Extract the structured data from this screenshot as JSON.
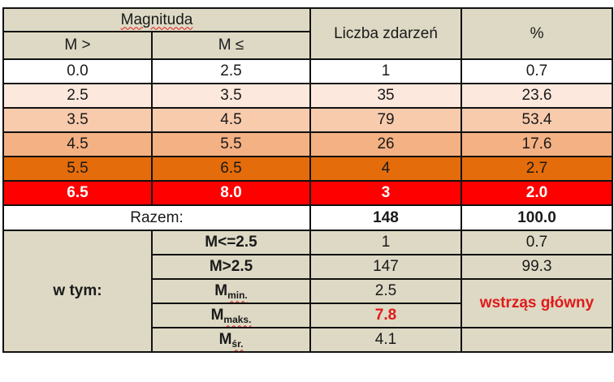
{
  "header": {
    "magnitude_group": "Magnituda",
    "col_m_gt": "M >",
    "col_m_le": "M ≤",
    "col_count": "Liczba zdarzeń",
    "col_percent": "%"
  },
  "rows": [
    {
      "m_gt": "0.0",
      "m_le": "2.5",
      "count": "1",
      "percent": "0.7",
      "color": "#ffffff",
      "text_color": "#1a1a1a",
      "bold": false
    },
    {
      "m_gt": "2.5",
      "m_le": "3.5",
      "count": "35",
      "percent": "23.6",
      "color": "#fce8dc",
      "text_color": "#1a1a1a",
      "bold": false
    },
    {
      "m_gt": "3.5",
      "m_le": "4.5",
      "count": "79",
      "percent": "53.4",
      "color": "#f8cbad",
      "text_color": "#1a1a1a",
      "bold": false
    },
    {
      "m_gt": "4.5",
      "m_le": "5.5",
      "count": "26",
      "percent": "17.6",
      "color": "#f4b183",
      "text_color": "#1a1a1a",
      "bold": false
    },
    {
      "m_gt": "5.5",
      "m_le": "6.5",
      "count": "4",
      "percent": "2.7",
      "color": "#e46c0a",
      "text_color": "#1a1a1a",
      "bold": false
    },
    {
      "m_gt": "6.5",
      "m_le": "8.0",
      "count": "3",
      "percent": "2.0",
      "color": "#ff0000",
      "text_color": "#ffffff",
      "bold": true
    }
  ],
  "total": {
    "label": "Razem:",
    "count": "148",
    "percent": "100.0"
  },
  "breakdown": {
    "label": "w tym:",
    "m_le_25": {
      "label": "M<=2.5",
      "count": "1",
      "percent": "0.7"
    },
    "m_gt_25": {
      "label": "M>2.5",
      "count": "147",
      "percent": "99.3"
    },
    "m_min": {
      "base": "M",
      "sub": "min.",
      "value": "2.5"
    },
    "m_max": {
      "base": "M",
      "sub": "maks.",
      "value": "7.8",
      "note": "wstrząs główny"
    },
    "m_avg": {
      "base": "M",
      "sub": "śr.",
      "value": "4.1"
    }
  },
  "colors": {
    "header_bg": "#ddd9c4",
    "accent_red": "#e01a1a"
  }
}
